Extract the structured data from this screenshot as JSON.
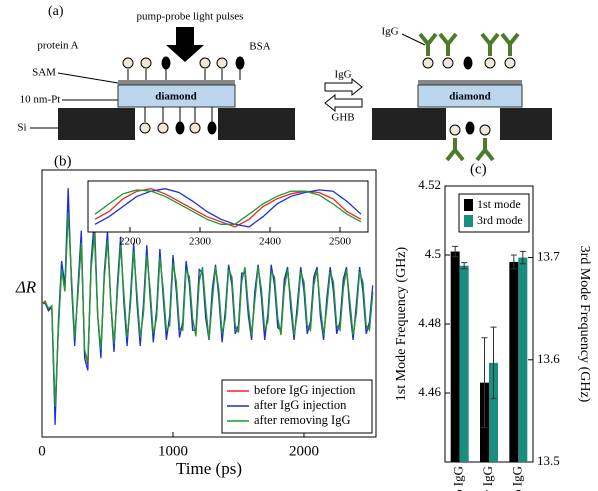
{
  "diagram": {
    "panel_label": "(a)",
    "pump_label": "pump-probe light pulses",
    "protein_label": "protein A",
    "bsa_label": "BSA",
    "sam_label": "SAM",
    "pt_label": "10 nm-Pt",
    "diamond_left": "diamond",
    "si_label": "Si",
    "igg_label": "IgG",
    "arrow_forward": "IgG",
    "arrow_back": "GHB",
    "diamond_right": "diamond"
  },
  "chart_data": [
    {
      "type": "line",
      "panel_label": "(b)",
      "xlabel": "Time (ps)",
      "ylabel": "ΔR",
      "legend": "lower right",
      "xlim": [
        0,
        2550
      ],
      "xticks": [
        0,
        1000,
        2000
      ],
      "ylim": [
        -1.1,
        1.1
      ],
      "x": [
        0,
        25,
        50,
        75,
        100,
        125,
        150,
        175,
        200,
        225,
        250,
        275,
        300,
        325,
        350,
        375,
        400,
        425,
        450,
        475,
        500,
        525,
        550,
        575,
        600,
        625,
        650,
        675,
        700,
        725,
        750,
        775,
        800,
        825,
        850,
        875,
        900,
        925,
        950,
        975,
        1000,
        1025,
        1050,
        1075,
        1100,
        1125,
        1150,
        1175,
        1200,
        1225,
        1250,
        1275,
        1300,
        1325,
        1350,
        1375,
        1400,
        1425,
        1450,
        1475,
        1500,
        1525,
        1550,
        1575,
        1600,
        1625,
        1650,
        1675,
        1700,
        1725,
        1750,
        1775,
        1800,
        1825,
        1850,
        1875,
        1900,
        1925,
        1950,
        1975,
        2000,
        2025,
        2050,
        2075,
        2100,
        2125,
        2150,
        2175,
        2200,
        2225,
        2250,
        2275,
        2300,
        2325,
        2350,
        2375,
        2400,
        2425,
        2450,
        2475,
        2500,
        2525
      ],
      "series": [
        {
          "name": "before IgG injection",
          "color": "#e8262b",
          "values": [
            0.0,
            0.02,
            -0.05,
            -0.02,
            -0.9,
            -0.2,
            0.3,
            0.1,
            0.8,
            0.2,
            -0.3,
            0.1,
            0.5,
            -0.4,
            -0.5,
            0.3,
            0.6,
            -0.1,
            -0.4,
            0.2,
            0.55,
            0.0,
            -0.35,
            0.1,
            0.5,
            0.05,
            -0.3,
            0.0,
            0.45,
            0.05,
            -0.3,
            -0.05,
            0.42,
            0.1,
            -0.28,
            -0.1,
            0.4,
            0.1,
            -0.25,
            -0.15,
            0.35,
            0.15,
            -0.22,
            -0.2,
            0.3,
            0.2,
            -0.15,
            -0.25,
            0.2,
            0.28,
            -0.05,
            -0.3,
            0.05,
            0.3,
            0.1,
            -0.28,
            -0.1,
            0.3,
            0.2,
            -0.2,
            -0.22,
            0.2,
            0.28,
            -0.05,
            -0.28,
            0.05,
            0.3,
            0.1,
            -0.25,
            -0.12,
            0.28,
            0.2,
            -0.15,
            -0.25,
            0.15,
            0.28,
            0.0,
            -0.28,
            -0.05,
            0.28,
            0.15,
            -0.2,
            -0.2,
            0.18,
            0.28,
            -0.05,
            -0.28,
            0.0,
            0.28,
            0.15,
            -0.2,
            -0.2,
            0.15,
            0.28,
            0.0,
            -0.28,
            -0.05,
            0.28,
            0.15,
            -0.2,
            -0.2,
            0.1
          ]
        },
        {
          "name": "after IgG injection",
          "color": "#1c2fd6",
          "values": [
            0.0,
            0.0,
            -0.06,
            -0.03,
            -1.0,
            -0.15,
            0.35,
            0.15,
            0.95,
            0.15,
            -0.35,
            0.15,
            0.6,
            -0.45,
            -0.55,
            0.35,
            0.7,
            -0.1,
            -0.45,
            0.25,
            0.6,
            0.0,
            -0.4,
            0.15,
            0.55,
            0.0,
            -0.35,
            0.05,
            0.5,
            0.0,
            -0.35,
            0.0,
            0.48,
            0.05,
            -0.32,
            -0.05,
            0.45,
            0.05,
            -0.3,
            -0.1,
            0.4,
            0.1,
            -0.28,
            -0.15,
            0.35,
            0.15,
            -0.22,
            -0.22,
            0.28,
            0.25,
            -0.12,
            -0.3,
            0.12,
            0.32,
            0.05,
            -0.32,
            -0.05,
            0.32,
            0.15,
            -0.25,
            -0.18,
            0.25,
            0.25,
            -0.1,
            -0.3,
            0.1,
            0.32,
            0.05,
            -0.3,
            -0.08,
            0.32,
            0.15,
            -0.2,
            -0.22,
            0.2,
            0.3,
            -0.05,
            -0.3,
            0.0,
            0.3,
            0.1,
            -0.25,
            -0.15,
            0.22,
            0.3,
            -0.1,
            -0.3,
            0.05,
            0.3,
            0.1,
            -0.25,
            -0.15,
            0.2,
            0.3,
            -0.05,
            -0.3,
            0.0,
            0.3,
            0.1,
            -0.25,
            -0.15,
            0.15
          ]
        },
        {
          "name": "after removing IgG",
          "color": "#1f9a2b",
          "values": [
            0.0,
            0.01,
            -0.04,
            -0.02,
            -0.85,
            -0.22,
            0.28,
            0.1,
            0.75,
            0.22,
            -0.28,
            0.08,
            0.5,
            -0.38,
            -0.48,
            0.28,
            0.58,
            -0.1,
            -0.38,
            0.2,
            0.52,
            0.02,
            -0.33,
            0.08,
            0.48,
            0.08,
            -0.28,
            -0.02,
            0.43,
            0.08,
            -0.28,
            -0.08,
            0.4,
            0.12,
            -0.25,
            -0.12,
            0.38,
            0.12,
            -0.22,
            -0.18,
            0.33,
            0.18,
            -0.2,
            -0.22,
            0.28,
            0.22,
            -0.12,
            -0.27,
            0.18,
            0.3,
            -0.02,
            -0.3,
            0.02,
            0.3,
            0.12,
            -0.25,
            -0.12,
            0.28,
            0.22,
            -0.18,
            -0.24,
            0.18,
            0.3,
            -0.02,
            -0.26,
            0.02,
            0.3,
            0.12,
            -0.22,
            -0.15,
            0.26,
            0.22,
            -0.12,
            -0.26,
            0.12,
            0.28,
            0.03,
            -0.26,
            -0.08,
            0.26,
            0.18,
            -0.18,
            -0.22,
            0.15,
            0.28,
            -0.02,
            -0.26,
            -0.03,
            0.26,
            0.18,
            -0.18,
            -0.22,
            0.12,
            0.28,
            0.03,
            -0.26,
            -0.08,
            0.26,
            0.18,
            -0.18,
            -0.22,
            0.08
          ]
        }
      ]
    },
    {
      "type": "line",
      "xlim": [
        2140,
        2540
      ],
      "xticks": [
        2200,
        2300,
        2400,
        2500
      ],
      "ylim": [
        -1,
        1
      ],
      "x": [
        2150,
        2170,
        2190,
        2210,
        2230,
        2250,
        2270,
        2290,
        2310,
        2330,
        2350,
        2370,
        2390,
        2410,
        2430,
        2450,
        2470,
        2490,
        2510,
        2530
      ],
      "series": [
        {
          "name": "before IgG injection",
          "color": "#e8262b",
          "values": [
            -0.5,
            -0.2,
            0.3,
            0.6,
            0.7,
            0.5,
            0.2,
            -0.1,
            -0.4,
            -0.6,
            -0.8,
            -0.5,
            0.0,
            0.3,
            0.5,
            0.6,
            0.55,
            0.3,
            -0.2,
            -0.5
          ]
        },
        {
          "name": "after IgG injection",
          "color": "#1c2fd6",
          "values": [
            -0.7,
            -0.4,
            0.0,
            0.4,
            0.6,
            0.7,
            0.55,
            0.2,
            -0.2,
            -0.5,
            -0.7,
            -0.8,
            -0.4,
            0.1,
            0.4,
            0.55,
            0.65,
            0.6,
            0.2,
            -0.3
          ]
        },
        {
          "name": "after removing IgG",
          "color": "#1f9a2b",
          "values": [
            -0.3,
            0.1,
            0.5,
            0.65,
            0.6,
            0.4,
            0.1,
            -0.2,
            -0.5,
            -0.7,
            -0.7,
            -0.3,
            0.1,
            0.4,
            0.6,
            0.6,
            0.45,
            0.1,
            -0.3,
            -0.6
          ]
        }
      ]
    },
    {
      "type": "bar",
      "panel_label": "(c)",
      "ylabel": "1st Mode Frequency (GHz)",
      "y2label": "3rd Mode Frequency (GHz)",
      "legend": "upper right",
      "categories": [
        "w/o IgG",
        "w IgG",
        "w/o IgG"
      ],
      "ylim": [
        4.44,
        4.52
      ],
      "yticks": [
        4.46,
        4.48,
        4.5,
        4.52
      ],
      "y2lim": [
        13.5,
        13.77
      ],
      "y2ticks": [
        13.5,
        13.6,
        13.7
      ],
      "series": [
        {
          "name": "1st mode",
          "color": "#000000",
          "values": [
            4.501,
            4.463,
            4.498
          ],
          "errors": [
            0.0015,
            0.013,
            0.002
          ]
        },
        {
          "name": "3rd mode",
          "color": "#1a8c80",
          "axis": "y2",
          "values": [
            13.692,
            13.597,
            13.7
          ],
          "errors": [
            0.003,
            0.035,
            0.006
          ]
        }
      ]
    }
  ]
}
